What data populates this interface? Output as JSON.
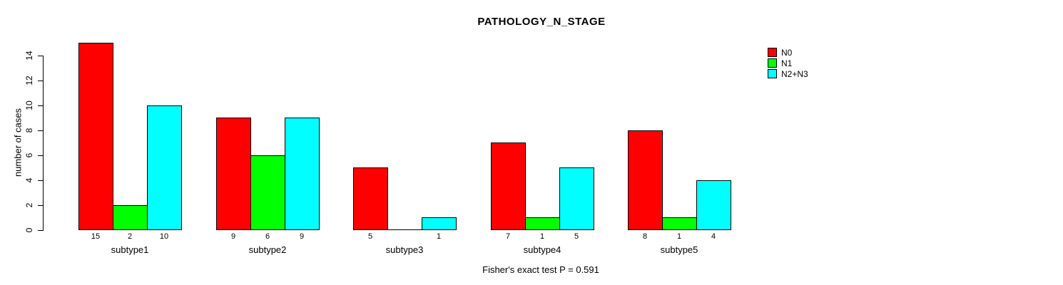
{
  "page": {
    "background": "#FFFFFF",
    "text_color": "#000000"
  },
  "chart_data": {
    "type": "bar",
    "title": "PATHOLOGY_N_STAGE",
    "subtitle": "Fisher's exact test P = 0.591",
    "ylabel": "number of cases",
    "xlabel": "",
    "categories": [
      "subtype1",
      "subtype2",
      "subtype3",
      "subtype4",
      "subtype5"
    ],
    "series": [
      {
        "name": "N0",
        "color": "#FF0000",
        "values": [
          15,
          9,
          5,
          7,
          8
        ]
      },
      {
        "name": "N1",
        "color": "#00FF00",
        "values": [
          2,
          6,
          0,
          1,
          1
        ]
      },
      {
        "name": "N2+N3",
        "color": "#00FFFF",
        "values": [
          10,
          9,
          1,
          5,
          4
        ]
      }
    ],
    "ylim": [
      0,
      15
    ],
    "yticks": [
      0,
      2,
      4,
      6,
      8,
      10,
      12,
      14
    ],
    "grid": false,
    "legend_position": "top-right",
    "legend_items": [
      {
        "label": "N0",
        "color": "#FF0000"
      },
      {
        "label": "N1",
        "color": "#00FF00"
      },
      {
        "label": "N2+N3",
        "color": "#00FFFF"
      }
    ],
    "bar_value_labels_shown": true,
    "zero_value_labels_hidden": true,
    "bar_border_color": "#000000",
    "axis_color": "#000000"
  }
}
